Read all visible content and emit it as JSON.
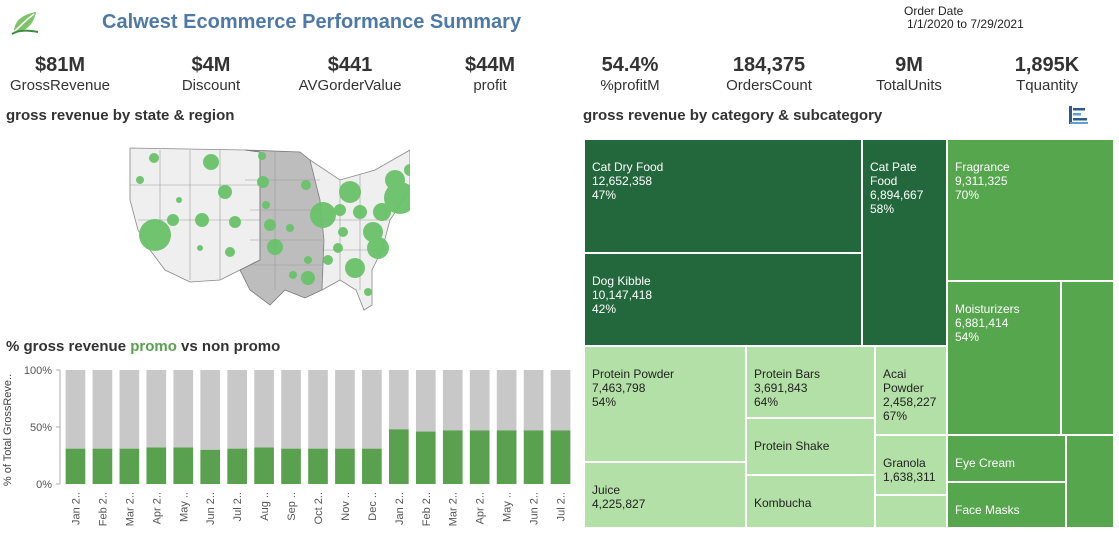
{
  "header": {
    "title": "Calwest Ecommerce Performance Summary",
    "order_date_label": "Order Date",
    "order_date_range": "1/1/2020 to 7/29/2021",
    "logo": "leaf-logo-icon"
  },
  "kpis": [
    {
      "value": "$81M",
      "label": "GrossRevenue"
    },
    {
      "value": "$4M",
      "label": "Discount"
    },
    {
      "value": "$441",
      "label": "AVGorderValue"
    },
    {
      "value": "$44M",
      "label": "profit"
    },
    {
      "value": "54.4%",
      "label": "%profitM"
    },
    {
      "value": "184,375",
      "label": "OrdersCount"
    },
    {
      "value": "9M",
      "label": "TotalUnits"
    },
    {
      "value": "1,895K",
      "label": "Tquantity"
    }
  ],
  "sections": {
    "map_title": "gross revenue by state & region",
    "treemap_title": "gross revenue by category & subcategory",
    "bar_title_pre": "% gross revenue ",
    "bar_title_promo": "promo",
    "bar_title_post": " vs non promo"
  },
  "colors": {
    "green": "#59a14f",
    "dark_green": "#23683c",
    "mid_green": "#56a64e",
    "light_green": "#b3e0a6",
    "grey": "#c8c8c8",
    "title_blue": "#4e79a7"
  },
  "chart_data": [
    {
      "type": "bar",
      "title": "% gross revenue promo vs non promo",
      "ylabel": "% of Total GrossReve..",
      "xlabel": "",
      "ylim": [
        0,
        100
      ],
      "yticks": [
        "100%",
        "50%",
        "0%"
      ],
      "categories": [
        "Jan 2..",
        "Feb 2..",
        "Mar 2..",
        "Apr 2..",
        "May ..",
        "Jun 2..",
        "Jul 2..",
        "Aug ..",
        "Sep ..",
        "Oct 2..",
        "Nov ..",
        "Dec ..",
        "Jan 2..",
        "Feb 2..",
        "Mar 2..",
        "Apr 2..",
        "May ..",
        "Jun 2..",
        "Jul 2.."
      ],
      "series": [
        {
          "values": [
            31,
            31,
            31,
            32,
            32,
            30,
            31,
            32,
            31,
            31,
            31,
            31,
            48,
            46,
            47,
            47,
            47,
            47,
            47
          ],
          "color": "#59a14f"
        },
        {
          "values": [
            69,
            69,
            69,
            68,
            68,
            70,
            69,
            68,
            69,
            69,
            69,
            69,
            52,
            54,
            53,
            53,
            53,
            53,
            53
          ],
          "color": "#c8c8c8"
        }
      ]
    },
    {
      "type": "treemap",
      "title": "gross revenue by category & subcategory",
      "items": [
        {
          "name": "Cat Dry Food",
          "value": "12,652,358",
          "pct": "47%"
        },
        {
          "name": "Dog Kibble",
          "value": "10,147,418",
          "pct": "42%"
        },
        {
          "name": "Cat Pate Food",
          "value": "6,894,667",
          "pct": "58%"
        },
        {
          "name": "Fragrance",
          "value": "9,311,325",
          "pct": "70%"
        },
        {
          "name": "Moisturizers",
          "value": "6,881,414",
          "pct": "54%"
        },
        {
          "name": "Eye Cream"
        },
        {
          "name": "Face Masks"
        },
        {
          "name": "Protein Powder",
          "value": "7,463,798",
          "pct": "54%"
        },
        {
          "name": "Juice",
          "value": "4,225,827"
        },
        {
          "name": "Protein Bars",
          "value": "3,691,843",
          "pct": "64%"
        },
        {
          "name": "Protein Shake"
        },
        {
          "name": "Kombucha"
        },
        {
          "name": "Acai Powder",
          "value": "2,458,227",
          "pct": "67%"
        },
        {
          "name": "Granola",
          "value": "1,638,311"
        }
      ]
    }
  ]
}
